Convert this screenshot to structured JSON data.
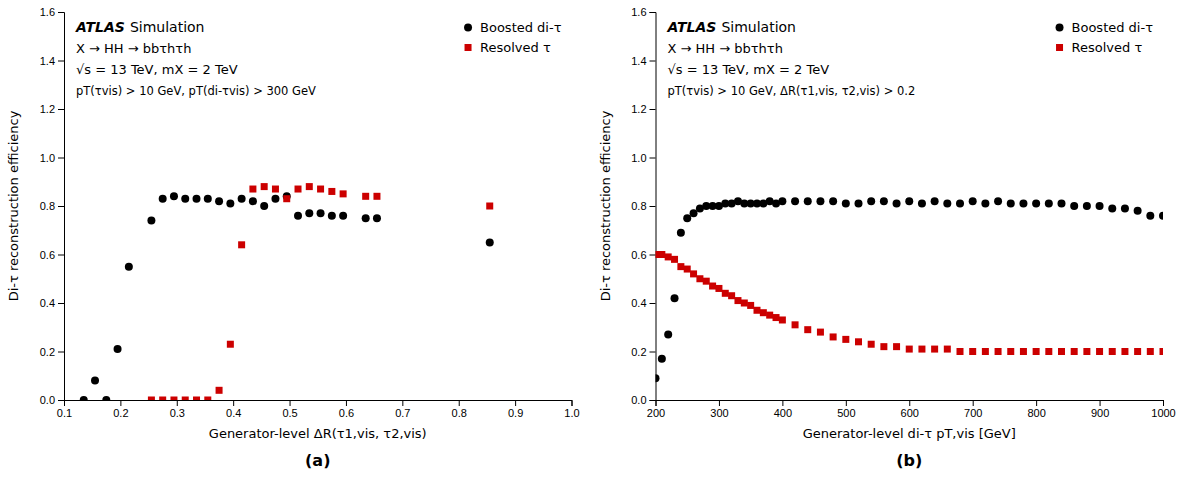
{
  "chart_data": [
    {
      "type": "scatter",
      "title": "(a)",
      "x_label": "Generator-level ΔR(τ1,vis, τ2,vis)",
      "y_label": "Di-τ reconstruction efficiency",
      "annotations": [
        "ATLAS",
        "Simulation",
        "X → HH → bbτhτh",
        "√s = 13 TeV, mX = 2 TeV",
        "pT(τvis) > 10 GeV, pT(di-τvis) > 300 GeV"
      ],
      "series": [
        {
          "name": "Boosted di-τ",
          "color": "#000000",
          "marker": "circle",
          "x": [
            0.135,
            0.155,
            0.175,
            0.195,
            0.215,
            0.255,
            0.275,
            0.295,
            0.315,
            0.335,
            0.355,
            0.375,
            0.395,
            0.415,
            0.435,
            0.455,
            0.475,
            0.495,
            0.515,
            0.535,
            0.555,
            0.575,
            0.595,
            0.635,
            0.655,
            0.855
          ],
          "values": [
            0.0,
            0.08,
            0.0,
            0.21,
            0.55,
            0.74,
            0.83,
            0.84,
            0.83,
            0.83,
            0.83,
            0.82,
            0.81,
            0.83,
            0.82,
            0.8,
            0.83,
            0.84,
            0.76,
            0.77,
            0.77,
            0.76,
            0.76,
            0.75,
            0.75,
            0.65
          ]
        },
        {
          "name": "Resolved τ",
          "color": "#cc0000",
          "marker": "square",
          "x": [
            0.255,
            0.275,
            0.295,
            0.315,
            0.335,
            0.355,
            0.375,
            0.395,
            0.415,
            0.435,
            0.455,
            0.475,
            0.495,
            0.515,
            0.535,
            0.555,
            0.575,
            0.595,
            0.635,
            0.655,
            0.855
          ],
          "values": [
            0.0,
            0.0,
            0.0,
            0.0,
            0.0,
            0.0,
            0.04,
            0.23,
            0.64,
            0.87,
            0.88,
            0.87,
            0.83,
            0.87,
            0.88,
            0.87,
            0.86,
            0.85,
            0.84,
            0.84,
            0.8
          ]
        }
      ],
      "xlim": [
        0.1,
        1.0
      ],
      "ylim": [
        0.0,
        1.6
      ],
      "xticks": [
        0.1,
        0.2,
        0.3,
        0.4,
        0.5,
        0.6,
        0.7,
        0.8,
        0.9,
        {
          "value": 1.0,
          "label": "1.0"
        }
      ],
      "yticks": [
        {
          "value": 0.0,
          "label": "0.0"
        },
        0.2,
        0.4,
        0.6,
        0.8,
        {
          "value": 1.0,
          "label": "1.0"
        },
        1.2,
        1.4,
        1.6
      ],
      "grid": false,
      "legend": "upper right"
    },
    {
      "type": "scatter",
      "title": "(b)",
      "x_label": "Generator-level di-τ pT,vis [GeV]",
      "y_label": "Di-τ reconstruction efficiency",
      "annotations": [
        "ATLAS",
        "Simulation",
        "X → HH → bbτhτh",
        "√s = 13 TeV, mX = 2 TeV",
        "pT(τvis) > 10 GeV, ΔR(τ1,vis, τ2,vis) > 0.2"
      ],
      "series": [
        {
          "name": "Boosted di-τ",
          "color": "#000000",
          "marker": "circle",
          "x": [
            200,
            210,
            220,
            230,
            240,
            250,
            260,
            270,
            280,
            290,
            300,
            310,
            320,
            330,
            340,
            350,
            360,
            370,
            380,
            390,
            400,
            420,
            440,
            460,
            480,
            500,
            520,
            540,
            560,
            580,
            600,
            620,
            640,
            660,
            680,
            700,
            720,
            740,
            760,
            780,
            800,
            820,
            840,
            860,
            880,
            900,
            920,
            940,
            960,
            980,
            1000
          ],
          "values": [
            0.09,
            0.17,
            0.27,
            0.42,
            0.69,
            0.75,
            0.77,
            0.79,
            0.8,
            0.8,
            0.8,
            0.81,
            0.81,
            0.82,
            0.81,
            0.81,
            0.81,
            0.81,
            0.82,
            0.81,
            0.82,
            0.82,
            0.82,
            0.82,
            0.82,
            0.81,
            0.81,
            0.82,
            0.82,
            0.81,
            0.82,
            0.81,
            0.82,
            0.81,
            0.81,
            0.82,
            0.81,
            0.82,
            0.81,
            0.81,
            0.81,
            0.81,
            0.81,
            0.8,
            0.8,
            0.8,
            0.79,
            0.79,
            0.78,
            0.76,
            0.76
          ]
        },
        {
          "name": "Resolved τ",
          "color": "#cc0000",
          "marker": "square",
          "x": [
            200,
            210,
            220,
            230,
            240,
            250,
            260,
            270,
            280,
            290,
            300,
            310,
            320,
            330,
            340,
            350,
            360,
            370,
            380,
            390,
            400,
            420,
            440,
            460,
            480,
            500,
            520,
            540,
            560,
            580,
            600,
            620,
            640,
            660,
            680,
            700,
            720,
            740,
            760,
            780,
            800,
            820,
            840,
            860,
            880,
            900,
            920,
            940,
            960,
            980,
            1000
          ],
          "values": [
            0.6,
            0.6,
            0.59,
            0.58,
            0.55,
            0.54,
            0.52,
            0.5,
            0.49,
            0.47,
            0.46,
            0.44,
            0.43,
            0.41,
            0.4,
            0.39,
            0.37,
            0.36,
            0.35,
            0.34,
            0.33,
            0.31,
            0.29,
            0.28,
            0.26,
            0.25,
            0.24,
            0.23,
            0.22,
            0.22,
            0.21,
            0.21,
            0.21,
            0.21,
            0.2,
            0.2,
            0.2,
            0.2,
            0.2,
            0.2,
            0.2,
            0.2,
            0.2,
            0.2,
            0.2,
            0.2,
            0.2,
            0.2,
            0.2,
            0.2,
            0.2
          ]
        }
      ],
      "xlim": [
        200,
        1000
      ],
      "ylim": [
        0.0,
        1.6
      ],
      "xticks": [
        200,
        300,
        400,
        500,
        600,
        700,
        800,
        900,
        1000
      ],
      "yticks": [
        {
          "value": 0.0,
          "label": "0.0"
        },
        0.2,
        0.4,
        0.6,
        0.8,
        {
          "value": 1.0,
          "label": "1.0"
        },
        1.2,
        1.4,
        1.6
      ],
      "grid": false,
      "legend": "upper right"
    }
  ]
}
